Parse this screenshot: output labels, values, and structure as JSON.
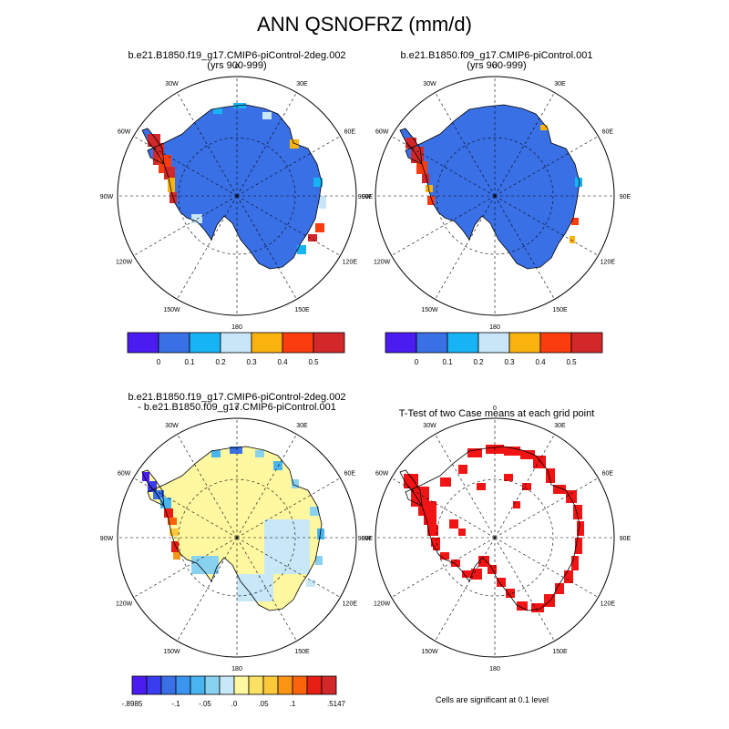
{
  "main_title": "ANN QSNOFRZ (mm/d)",
  "panels": [
    {
      "title_line1": "b.e21.B1850.f19_g17.CMIP6-piControl-2deg.002",
      "title_line2": "(yrs 900-999)"
    },
    {
      "title_line1": "b.e21.B1850.f09_g17.CMIP6-piControl.001",
      "title_line2": "(yrs 900-999)"
    },
    {
      "title_line1": "b.e21.B1850.f19_g17.CMIP6-piControl-2deg.002",
      "title_line2": "- b.e21.B1850.f09_g17.CMIP6-piControl.001"
    },
    {
      "title_line1": "T-Test of two Case means at each grid point",
      "title_line2": ""
    }
  ],
  "longitude_labels": [
    "0",
    "30E",
    "60E",
    "90E",
    "120E",
    "150E",
    "180",
    "150W",
    "120W",
    "90W",
    "60W",
    "30W"
  ],
  "colorbar_top": {
    "colors": [
      "#4b1cf0",
      "#3a70e6",
      "#17b4f5",
      "#c8e6f8",
      "#fab20e",
      "#fa3c0e",
      "#d2282a"
    ],
    "labels": [
      "0",
      "0.1",
      "0.2",
      "0.3",
      "0.4",
      "0.5"
    ]
  },
  "colorbar_diff": {
    "colors": [
      "#4b1cf0",
      "#3a3cf0",
      "#3a70e6",
      "#3a94f0",
      "#48b4f0",
      "#88d2f0",
      "#c8e8f8",
      "#fff8a0",
      "#fbe064",
      "#fbc83c",
      "#fa9614",
      "#fa640a",
      "#e61e14",
      "#d2282a"
    ],
    "labels": [
      "-.8985",
      "-.1",
      "-.05",
      ".0",
      ".05",
      ".1",
      ".5147"
    ]
  },
  "significance_note": "Cells are significant at 0.1 level",
  "colors": {
    "antarctica_base": "#3a70e6",
    "diff_base": "#fff8a0",
    "ttest_fill": "#f01414"
  }
}
